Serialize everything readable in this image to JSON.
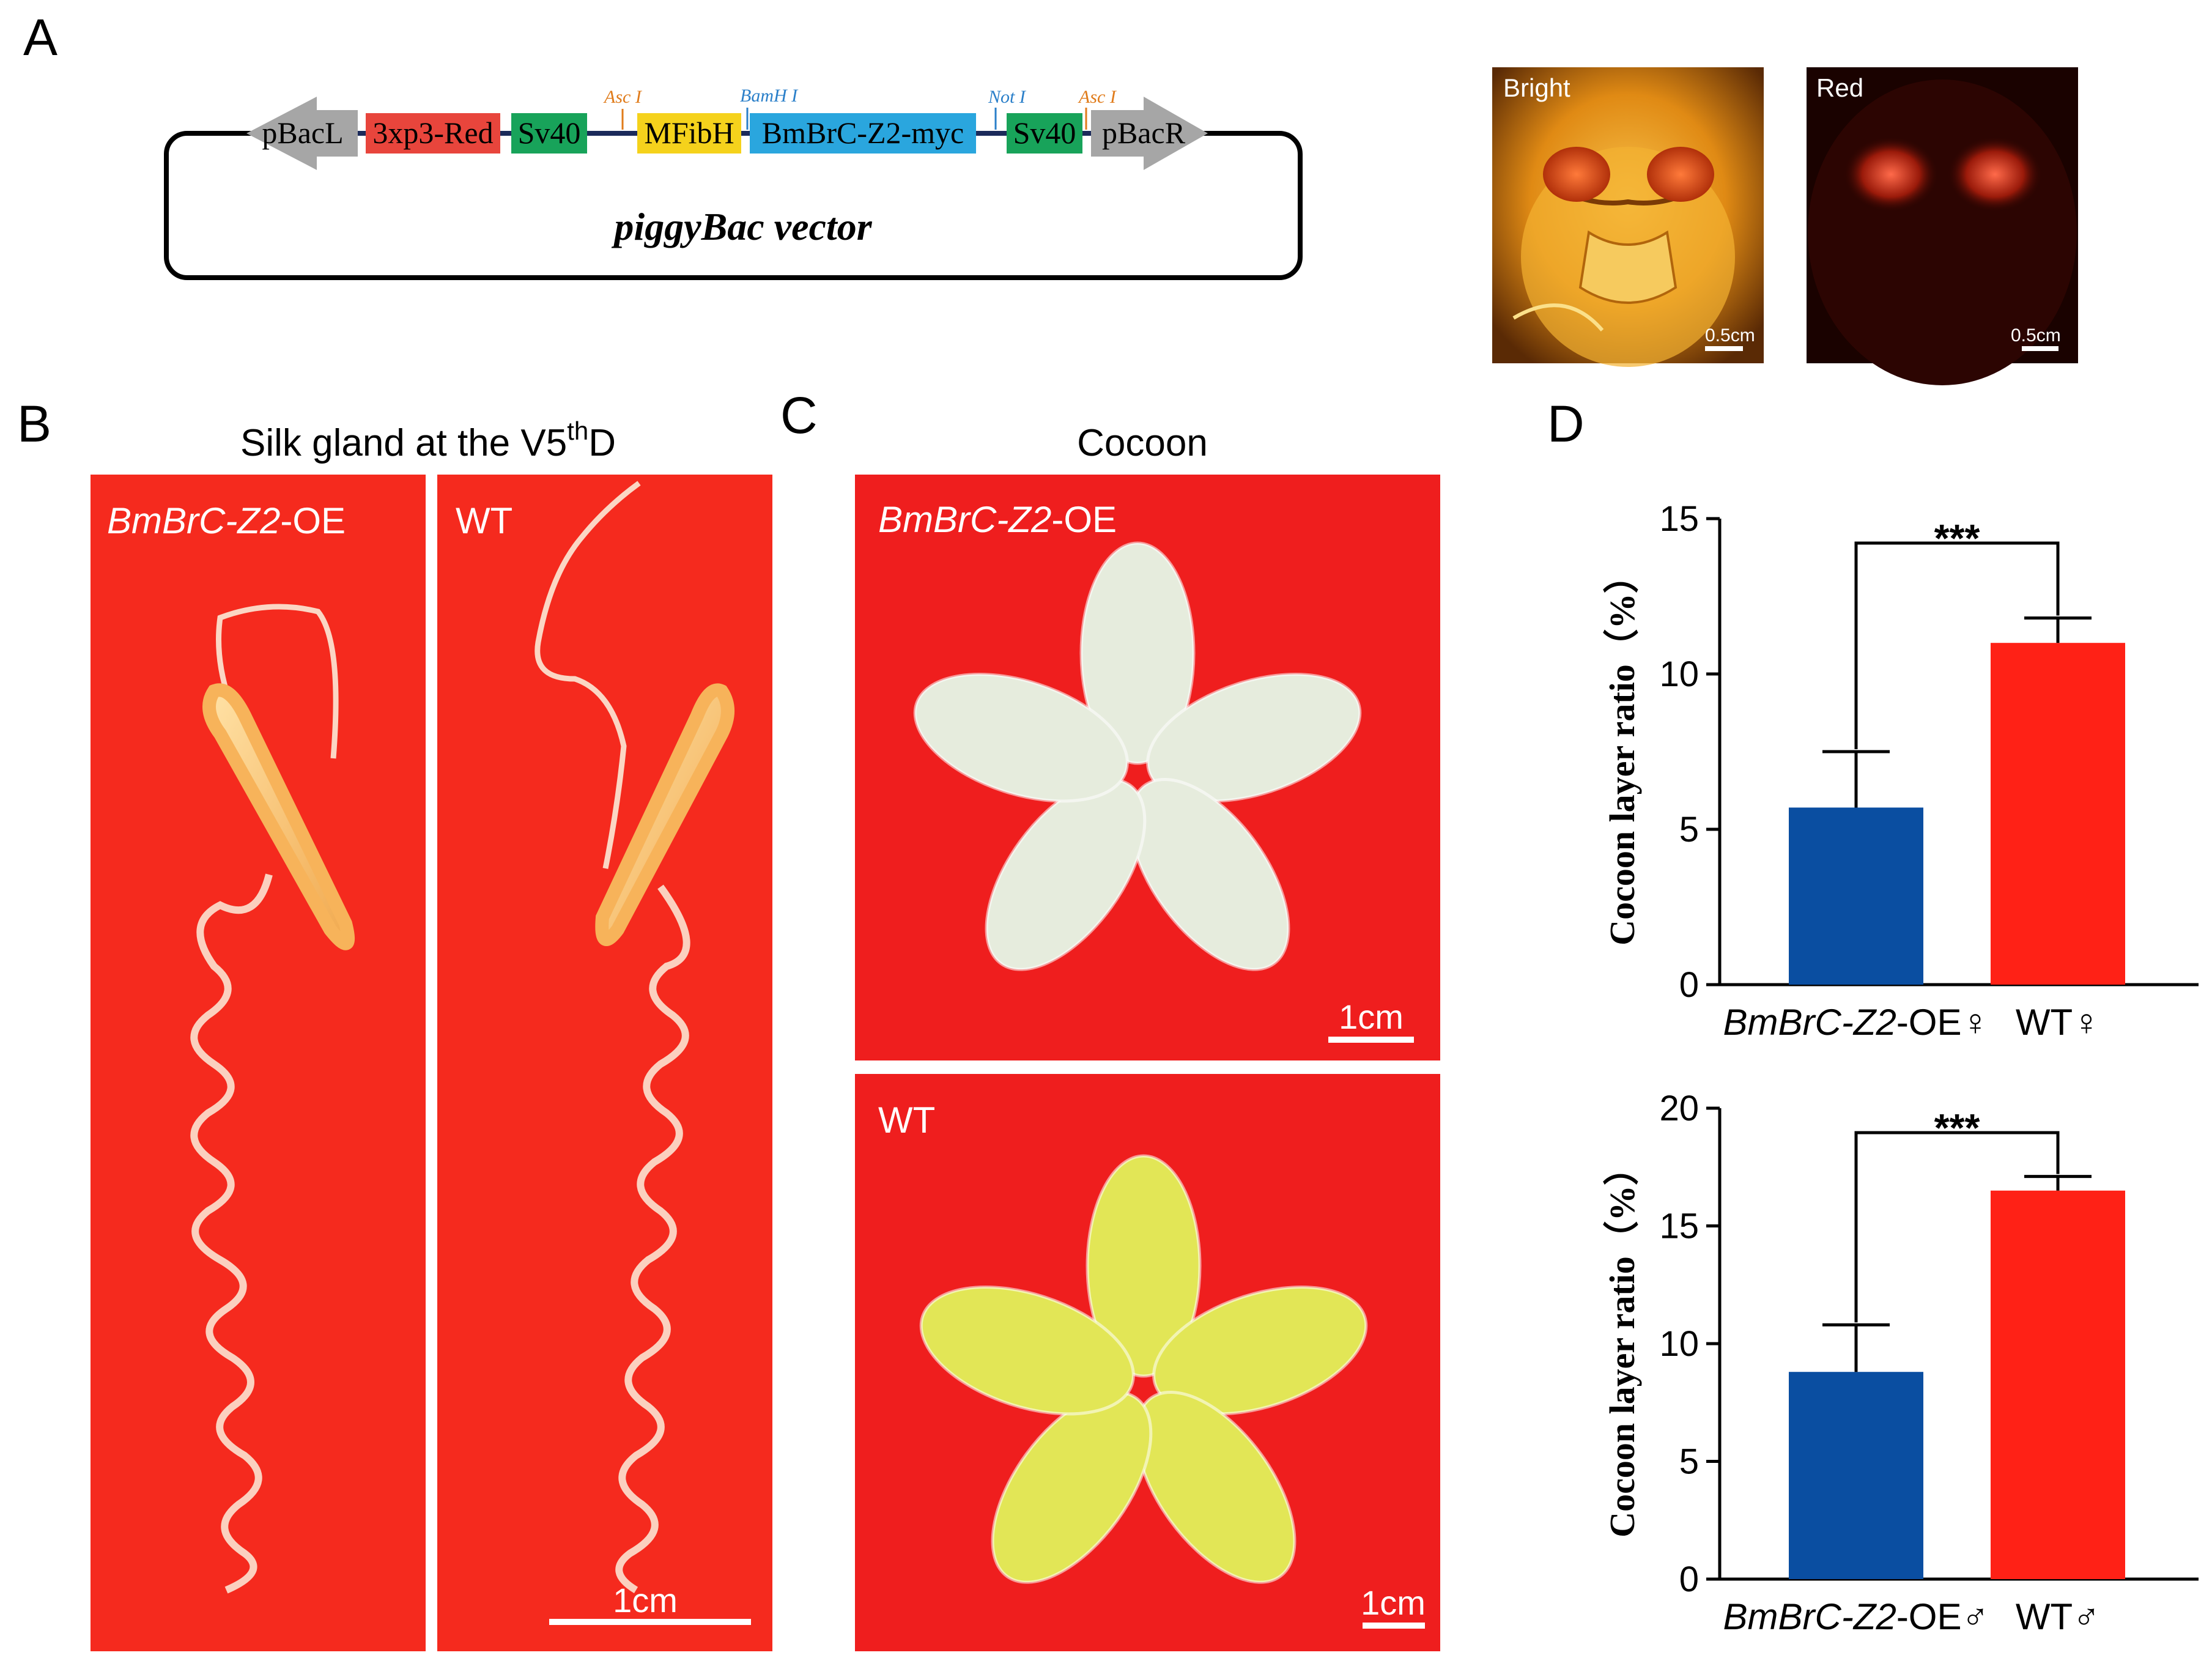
{
  "panels": {
    "a": "A",
    "b": "B",
    "c": "C",
    "d": "D"
  },
  "vector": {
    "elements": [
      {
        "label": "pBacL",
        "color": "#a6a6a6",
        "kind": "arrow-left"
      },
      {
        "label": "3xp3-Red",
        "color": "#e8453c",
        "kind": "box"
      },
      {
        "label": "Sv40",
        "color": "#18a35a",
        "kind": "box"
      },
      {
        "label": "MFibH",
        "color": "#f5d21c",
        "kind": "box"
      },
      {
        "label": "BmBrC-Z2-myc",
        "color": "#2aa6de",
        "kind": "box"
      },
      {
        "label": "Sv40",
        "color": "#18a35a",
        "kind": "box"
      },
      {
        "label": "pBacR",
        "color": "#a6a6a6",
        "kind": "arrow-right"
      }
    ],
    "sites": [
      {
        "label": "Asc I",
        "color": "#e07b1a"
      },
      {
        "label": "BamH I",
        "color": "#2a7fc9"
      },
      {
        "label": "Not I",
        "color": "#2a7fc9"
      },
      {
        "label": "Asc I",
        "color": "#e07b1a"
      }
    ],
    "name": "piggyBac vector"
  },
  "fluorescence": {
    "bright_label": "Bright",
    "red_label": "Red",
    "scale": "0.5cm"
  },
  "silk_gland": {
    "title_main": "Silk gland at the V5",
    "title_sup": "th",
    "title_end": "D",
    "oe_label_italic": "BmBrC-Z2",
    "oe_label_rest": "-OE",
    "wt_label": "WT",
    "scale": "1cm"
  },
  "cocoon": {
    "title": "Cocoon",
    "oe_label_italic": "BmBrC-Z2",
    "oe_label_rest": "-OE",
    "wt_label": "WT",
    "scale": "1cm",
    "oe_color": "#e6ecdd",
    "wt_color": "#e2e656"
  },
  "chart_data": [
    {
      "type": "bar",
      "categories": [
        "BmBrC-Z2-OE♀",
        "WT♀"
      ],
      "category_italic": [
        "BmBrC-Z2",
        ""
      ],
      "category_rest": [
        "-OE♀",
        "WT♀"
      ],
      "values": [
        5.7,
        11.0
      ],
      "errors": [
        1.8,
        0.8
      ],
      "colors": [
        "#0a4ea1",
        "#ff2116"
      ],
      "ylabel": "Cocoon layer ratio（%）",
      "ylim": [
        0,
        15
      ],
      "yticks": [
        0,
        5,
        10,
        15
      ],
      "significance": "***"
    },
    {
      "type": "bar",
      "categories": [
        "BmBrC-Z2-OE♂",
        "WT♂"
      ],
      "category_italic": [
        "BmBrC-Z2",
        ""
      ],
      "category_rest": [
        "-OE♂",
        "WT♂"
      ],
      "values": [
        8.8,
        16.5
      ],
      "errors": [
        2.0,
        0.6
      ],
      "colors": [
        "#0a4ea1",
        "#ff2116"
      ],
      "ylabel": "Cocoon layer ratio（%）",
      "ylim": [
        0,
        20
      ],
      "yticks": [
        0,
        5,
        10,
        15,
        20
      ],
      "significance": "***"
    }
  ]
}
